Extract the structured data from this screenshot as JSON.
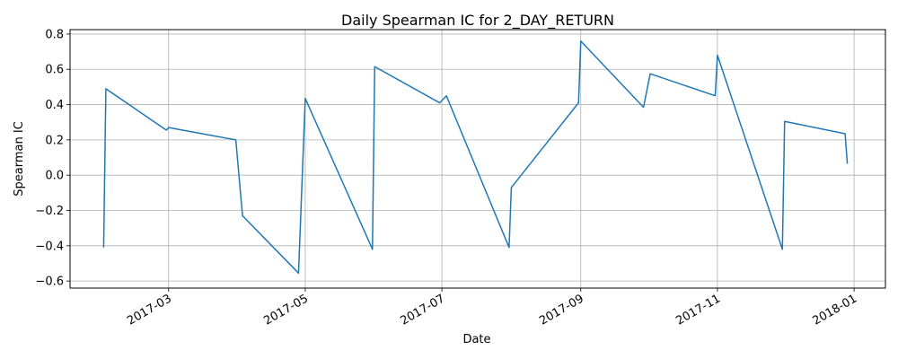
{
  "chart_data": {
    "type": "line",
    "title": "Daily Spearman IC for 2_DAY_RETURN",
    "xlabel": "Date",
    "ylabel": "Spearman IC",
    "x_tick_labels": [
      "2017-03",
      "2017-05",
      "2017-07",
      "2017-09",
      "2017-11",
      "2018-01"
    ],
    "x_tick_dates": [
      "2017-03-01",
      "2017-05-01",
      "2017-07-01",
      "2017-09-01",
      "2017-11-01",
      "2018-01-01"
    ],
    "y_tick_labels": [
      "−0.6",
      "−0.4",
      "−0.2",
      "0.0",
      "0.2",
      "0.4",
      "0.6",
      "0.8"
    ],
    "y_tick_values": [
      -0.6,
      -0.4,
      -0.2,
      0.0,
      0.2,
      0.4,
      0.6,
      0.8
    ],
    "xlim": [
      "2017-01-16",
      "2018-01-15"
    ],
    "ylim": [
      -0.64,
      0.825
    ],
    "grid": true,
    "line_color": "#1f77b4",
    "series": [
      {
        "x": [
          "2017-01-31",
          "2017-02-01",
          "2017-02-28",
          "2017-03-01",
          "2017-03-31",
          "2017-04-03",
          "2017-04-28",
          "2017-05-01",
          "2017-05-31",
          "2017-06-01",
          "2017-06-30",
          "2017-07-03",
          "2017-07-31",
          "2017-08-01",
          "2017-08-31",
          "2017-09-01",
          "2017-09-29",
          "2017-10-02",
          "2017-10-31",
          "2017-11-01",
          "2017-11-30",
          "2017-12-01",
          "2017-12-28",
          "2017-12-29"
        ],
        "values": [
          -0.41,
          0.49,
          0.255,
          0.27,
          0.2,
          -0.23,
          -0.555,
          0.435,
          -0.42,
          0.615,
          0.41,
          0.45,
          -0.41,
          -0.07,
          0.41,
          0.76,
          0.385,
          0.575,
          0.45,
          0.68,
          -0.42,
          0.305,
          0.235,
          0.065
        ]
      }
    ]
  }
}
